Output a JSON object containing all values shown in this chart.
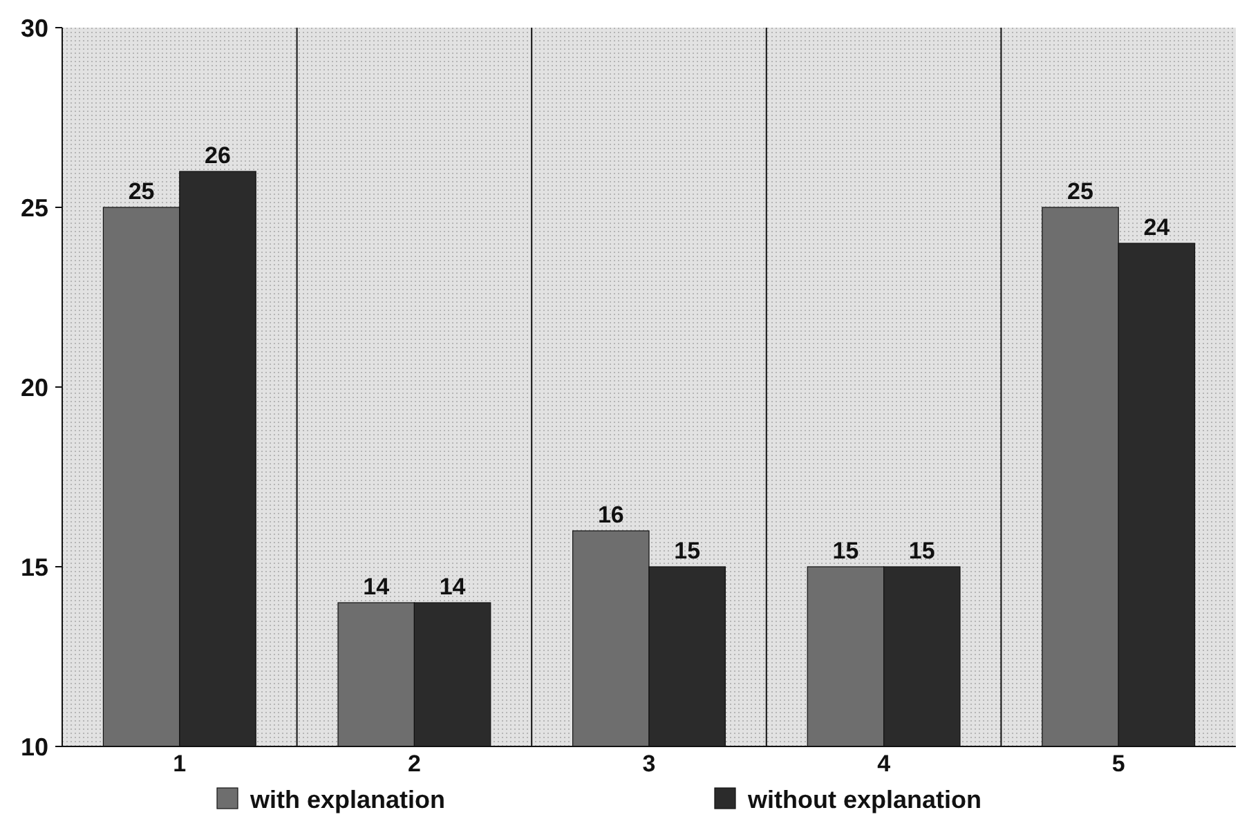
{
  "chart_data": {
    "type": "bar",
    "categories": [
      "1",
      "2",
      "3",
      "4",
      "5"
    ],
    "series": [
      {
        "name": "with explanation",
        "color": "#6e6e6e",
        "values": [
          25,
          14,
          16,
          15,
          25
        ]
      },
      {
        "name": "without explanation",
        "color": "#2b2b2b",
        "values": [
          26,
          14,
          15,
          15,
          24
        ]
      }
    ],
    "ylim": [
      10,
      30
    ],
    "yticks": [
      10,
      15,
      20,
      25,
      30
    ],
    "grid": "x",
    "legend": "bottom",
    "data_labels": true
  }
}
